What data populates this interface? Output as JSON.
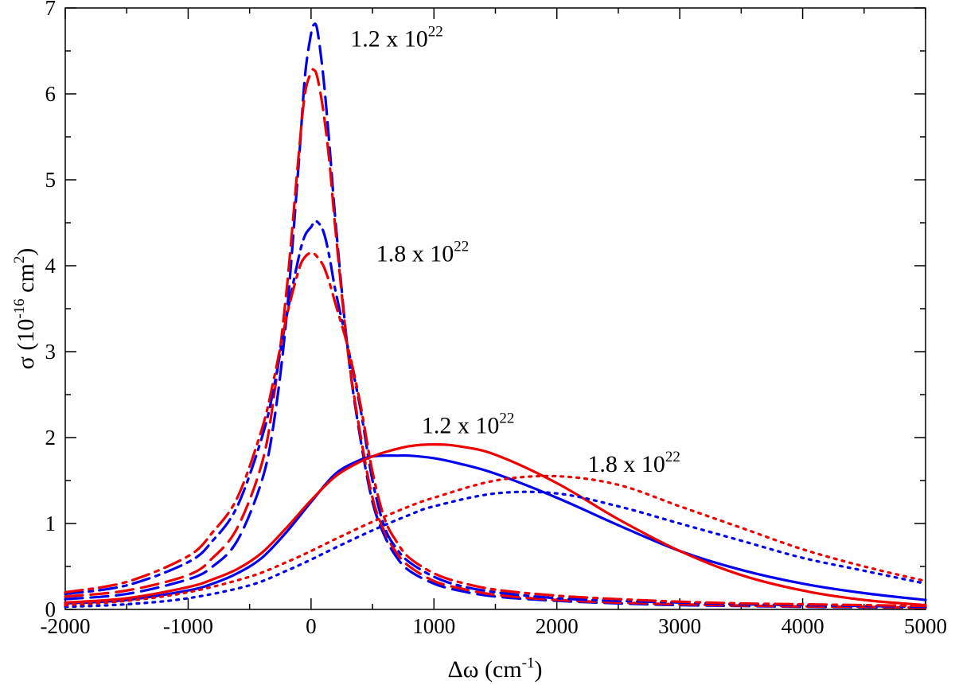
{
  "chart_data": {
    "type": "line",
    "xlabel_main": "Δω (cm",
    "xlabel_sup": "-1",
    "xlabel_end": ")",
    "ylabel_main": "σ  (10",
    "ylabel_sup1": "-16",
    "ylabel_mid": " cm",
    "ylabel_sup2": "2",
    "ylabel_end": ")",
    "xlim": [
      -2000,
      5000
    ],
    "ylim": [
      0,
      7
    ],
    "xticks": [
      -2000,
      -1000,
      0,
      1000,
      2000,
      3000,
      4000,
      5000
    ],
    "yticks": [
      0,
      1,
      2,
      3,
      4,
      5,
      6,
      7
    ],
    "x_tick_labels": [
      "-2000",
      "-1000",
      "0",
      "1000",
      "2000",
      "3000",
      "4000",
      "5000"
    ],
    "y_tick_labels": [
      "0",
      "1",
      "2",
      "3",
      "4",
      "5",
      "6",
      "7"
    ],
    "colors": {
      "blue": "#0000ee",
      "red": "#ee0000"
    },
    "annotations": [
      {
        "id": "ann1",
        "base": "1.2 x 10",
        "exp": "22",
        "x": 320,
        "y": 6.55
      },
      {
        "id": "ann2",
        "base": "1.8 x 10",
        "exp": "22",
        "x": 530,
        "y": 4.05
      },
      {
        "id": "ann3",
        "base": "1.2 x 10",
        "exp": "22",
        "x": 900,
        "y": 2.05
      },
      {
        "id": "ann4",
        "base": "1.8 x 10",
        "exp": "22",
        "x": 2250,
        "y": 1.6
      }
    ],
    "series": [
      {
        "name": "dashed-blue",
        "color": "#0000ee",
        "dash": "22,10",
        "x": [
          -2000,
          -1500,
          -1000,
          -800,
          -600,
          -400,
          -300,
          -200,
          -100,
          -50,
          0,
          20,
          50,
          100,
          150,
          200,
          300,
          400,
          500,
          600,
          700,
          800,
          1000,
          1200,
          1500,
          2000,
          2500,
          3000,
          3500,
          4000,
          4500,
          5000
        ],
        "y": [
          0.12,
          0.18,
          0.35,
          0.5,
          0.8,
          1.5,
          2.2,
          3.4,
          5.2,
          6.2,
          6.7,
          6.8,
          6.75,
          6.2,
          5.4,
          4.5,
          3.0,
          2.0,
          1.25,
          0.85,
          0.6,
          0.45,
          0.3,
          0.22,
          0.15,
          0.1,
          0.07,
          0.05,
          0.04,
          0.03,
          0.025,
          0.02
        ]
      },
      {
        "name": "dashed-red",
        "color": "#ee0000",
        "dash": "22,10",
        "x": [
          -2000,
          -1500,
          -1000,
          -800,
          -600,
          -400,
          -300,
          -200,
          -100,
          -50,
          0,
          20,
          50,
          100,
          150,
          200,
          300,
          400,
          500,
          600,
          700,
          800,
          1000,
          1200,
          1500,
          2000,
          2500,
          3000,
          3500,
          4000,
          4500,
          5000
        ],
        "y": [
          0.15,
          0.22,
          0.4,
          0.6,
          0.95,
          1.7,
          2.5,
          3.7,
          5.3,
          6.0,
          6.25,
          6.28,
          6.2,
          5.8,
          5.2,
          4.4,
          3.0,
          2.05,
          1.3,
          0.9,
          0.65,
          0.5,
          0.33,
          0.25,
          0.17,
          0.11,
          0.08,
          0.06,
          0.045,
          0.035,
          0.03,
          0.02
        ]
      },
      {
        "name": "dashdot-blue",
        "color": "#0000ee",
        "dash": "22,8,5,8",
        "x": [
          -2000,
          -1500,
          -1000,
          -800,
          -600,
          -400,
          -300,
          -200,
          -100,
          -50,
          0,
          40,
          100,
          150,
          200,
          300,
          400,
          500,
          600,
          700,
          800,
          1000,
          1200,
          1500,
          2000,
          2500,
          3000,
          3500,
          4000,
          4500,
          5000
        ],
        "y": [
          0.18,
          0.28,
          0.55,
          0.8,
          1.2,
          2.0,
          2.6,
          3.4,
          4.1,
          4.35,
          4.45,
          4.52,
          4.4,
          4.1,
          3.7,
          3.05,
          2.35,
          1.5,
          0.95,
          0.7,
          0.55,
          0.38,
          0.28,
          0.2,
          0.13,
          0.1,
          0.08,
          0.06,
          0.05,
          0.04,
          0.03
        ]
      },
      {
        "name": "dashdot-red",
        "color": "#ee0000",
        "dash": "22,8,5,8",
        "x": [
          -2000,
          -1500,
          -1000,
          -800,
          -600,
          -400,
          -300,
          -200,
          -100,
          -50,
          0,
          40,
          100,
          150,
          200,
          300,
          400,
          500,
          600,
          700,
          800,
          1000,
          1200,
          1500,
          2000,
          2500,
          3000,
          3500,
          4000,
          4500,
          5000
        ],
        "y": [
          0.2,
          0.32,
          0.62,
          0.9,
          1.3,
          2.1,
          2.7,
          3.4,
          3.95,
          4.1,
          4.15,
          4.12,
          4.0,
          3.8,
          3.55,
          3.05,
          2.4,
          1.6,
          1.05,
          0.78,
          0.6,
          0.42,
          0.32,
          0.23,
          0.16,
          0.12,
          0.09,
          0.07,
          0.06,
          0.05,
          0.04
        ]
      },
      {
        "name": "solid-blue",
        "color": "#0000ee",
        "dash": "",
        "x": [
          -2000,
          -1500,
          -1000,
          -800,
          -600,
          -400,
          -200,
          0,
          200,
          400,
          500,
          600,
          700,
          800,
          1000,
          1200,
          1500,
          2000,
          2500,
          3000,
          3500,
          4000,
          4500,
          5000
        ],
        "y": [
          0.07,
          0.11,
          0.22,
          0.3,
          0.42,
          0.6,
          0.9,
          1.25,
          1.58,
          1.74,
          1.78,
          1.79,
          1.79,
          1.79,
          1.76,
          1.7,
          1.58,
          1.3,
          0.98,
          0.68,
          0.46,
          0.3,
          0.19,
          0.11
        ]
      },
      {
        "name": "solid-red",
        "color": "#ee0000",
        "dash": "",
        "x": [
          -2000,
          -1500,
          -1000,
          -800,
          -600,
          -400,
          -200,
          0,
          200,
          400,
          500,
          600,
          800,
          1000,
          1200,
          1500,
          2000,
          2500,
          3000,
          3500,
          4000,
          4500,
          5000
        ],
        "y": [
          0.08,
          0.13,
          0.26,
          0.35,
          0.47,
          0.66,
          0.95,
          1.27,
          1.55,
          1.72,
          1.78,
          1.83,
          1.9,
          1.92,
          1.9,
          1.8,
          1.47,
          1.05,
          0.68,
          0.4,
          0.22,
          0.11,
          0.05
        ]
      },
      {
        "name": "dotted-blue",
        "color": "#0000ee",
        "dash": "3,7",
        "x": [
          -2000,
          -1500,
          -1000,
          -500,
          -200,
          0,
          200,
          500,
          800,
          1000,
          1500,
          2000,
          2500,
          3000,
          3500,
          4000,
          4500,
          5000
        ],
        "y": [
          0.03,
          0.06,
          0.13,
          0.28,
          0.45,
          0.58,
          0.72,
          0.92,
          1.1,
          1.2,
          1.35,
          1.35,
          1.2,
          1.0,
          0.8,
          0.6,
          0.45,
          0.3
        ]
      },
      {
        "name": "dotted-red",
        "color": "#ee0000",
        "dash": "3,7",
        "x": [
          -2000,
          -1500,
          -1000,
          -500,
          -200,
          0,
          200,
          500,
          800,
          1000,
          1500,
          2000,
          2500,
          3000,
          3500,
          4000,
          4500,
          5000
        ],
        "y": [
          0.05,
          0.1,
          0.2,
          0.38,
          0.55,
          0.68,
          0.82,
          1.02,
          1.2,
          1.3,
          1.5,
          1.55,
          1.45,
          1.2,
          0.95,
          0.7,
          0.5,
          0.33
        ]
      }
    ]
  }
}
